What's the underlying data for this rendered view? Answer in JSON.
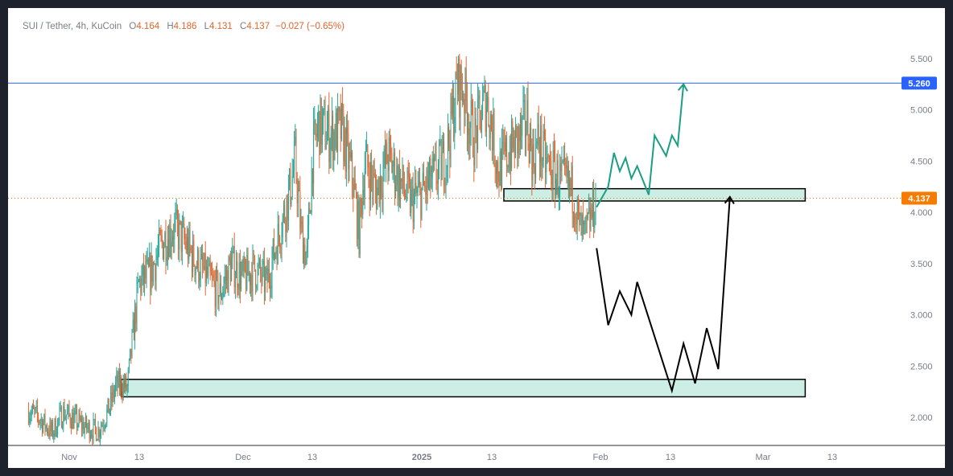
{
  "header": {
    "symbol": "SUI / Tether, 4h, KuCoin",
    "open_label": "O",
    "open_value": "4.164",
    "high_label": "H",
    "high_value": "4.186",
    "low_label": "L",
    "low_value": "4.131",
    "close_label": "C",
    "close_value": "4.137",
    "change": "−0.027 (−0.65%)"
  },
  "chart_data": {
    "type": "candlestick",
    "ylim": [
      1.75,
      5.65
    ],
    "y_ticks": [
      2.0,
      2.5,
      3.0,
      3.5,
      4.0,
      4.5,
      5.0,
      5.5
    ],
    "y_tick_labels": [
      "2.000",
      "2.500",
      "3.000",
      "3.500",
      "4.000",
      "4.500",
      "5.000",
      "5.500"
    ],
    "x_tick_labels": [
      "Nov",
      "13",
      "Dec",
      "13",
      "2025",
      "13",
      "Feb",
      "13",
      "Mar",
      "13"
    ],
    "colors": {
      "up": "#26a69a",
      "down": "#e0652e",
      "resistance": "#2962ff",
      "price": "#f57c00",
      "zone_fill": "#cdeee5",
      "bull_path": "#1a9e86",
      "bear_path": "#000000"
    },
    "resistance": {
      "value": 5.26,
      "label": "5.260"
    },
    "last_price": {
      "value": 4.137,
      "label": "4.137"
    },
    "zones": [
      {
        "name": "upper-zone",
        "from_date": "2025-01-14",
        "to_date": "2025-03-07",
        "low": 4.11,
        "high": 4.23
      },
      {
        "name": "lower-zone",
        "from_date": "2024-11-09",
        "to_date": "2025-03-07",
        "low": 2.2,
        "high": 2.37
      }
    ],
    "close_series": [
      [
        "2024-10-24",
        2.07
      ],
      [
        "2024-10-26",
        1.98
      ],
      [
        "2024-10-28",
        1.85
      ],
      [
        "2024-10-30",
        2.05
      ],
      [
        "2024-11-01",
        1.97
      ],
      [
        "2024-11-03",
        1.9
      ],
      [
        "2024-11-05",
        1.87
      ],
      [
        "2024-11-07",
        2.1
      ],
      [
        "2024-11-08",
        2.3
      ],
      [
        "2024-11-09",
        2.33
      ],
      [
        "2024-11-10",
        2.28
      ],
      [
        "2024-11-11",
        2.8
      ],
      [
        "2024-11-12",
        3.3
      ],
      [
        "2024-11-14",
        3.4
      ],
      [
        "2024-11-16",
        3.7
      ],
      [
        "2024-11-18",
        3.85
      ],
      [
        "2024-11-20",
        3.7
      ],
      [
        "2024-11-22",
        3.5
      ],
      [
        "2024-11-24",
        3.35
      ],
      [
        "2024-11-26",
        3.2
      ],
      [
        "2024-11-28",
        3.5
      ],
      [
        "2024-11-30",
        3.35
      ],
      [
        "2024-12-02",
        3.45
      ],
      [
        "2024-12-04",
        3.3
      ],
      [
        "2024-12-06",
        3.75
      ],
      [
        "2024-12-08",
        4.2
      ],
      [
        "2024-12-09",
        4.5
      ],
      [
        "2024-12-10",
        3.8
      ],
      [
        "2024-12-11",
        3.55
      ],
      [
        "2024-12-12",
        4.55
      ],
      [
        "2024-12-13",
        4.85
      ],
      [
        "2024-12-15",
        4.75
      ],
      [
        "2024-12-17",
        4.8
      ],
      [
        "2024-12-19",
        4.3
      ],
      [
        "2024-12-20",
        3.8
      ],
      [
        "2024-12-21",
        4.5
      ],
      [
        "2024-12-23",
        4.2
      ],
      [
        "2024-12-25",
        4.55
      ],
      [
        "2024-12-27",
        4.3
      ],
      [
        "2024-12-29",
        4.1
      ],
      [
        "2024-12-31",
        4.2
      ],
      [
        "2025-01-02",
        4.35
      ],
      [
        "2025-01-04",
        4.55
      ],
      [
        "2025-01-05",
        4.9
      ],
      [
        "2025-01-06",
        5.25
      ],
      [
        "2025-01-07",
        5.2
      ],
      [
        "2025-01-08",
        4.9
      ],
      [
        "2025-01-09",
        4.7
      ],
      [
        "2025-01-10",
        4.95
      ],
      [
        "2025-01-11",
        5.1
      ],
      [
        "2025-01-12",
        4.8
      ],
      [
        "2025-01-13",
        4.4
      ],
      [
        "2025-01-15",
        4.6
      ],
      [
        "2025-01-17",
        4.75
      ],
      [
        "2025-01-18",
        4.9
      ],
      [
        "2025-01-19",
        4.5
      ],
      [
        "2025-01-20",
        4.7
      ],
      [
        "2025-01-21",
        4.5
      ],
      [
        "2025-01-23",
        4.35
      ],
      [
        "2025-01-25",
        4.25
      ],
      [
        "2025-01-26",
        4.2
      ],
      [
        "2025-01-27",
        3.85
      ],
      [
        "2025-01-28",
        3.75
      ],
      [
        "2025-01-29",
        3.95
      ],
      [
        "2025-01-30",
        4.137
      ]
    ],
    "bull_path": [
      [
        "2025-01-30",
        4.05
      ],
      [
        "2025-02-01",
        4.25
      ],
      [
        "2025-02-02",
        4.58
      ],
      [
        "2025-02-03",
        4.4
      ],
      [
        "2025-02-04",
        4.53
      ],
      [
        "2025-02-05",
        4.33
      ],
      [
        "2025-02-06",
        4.45
      ],
      [
        "2025-02-08",
        4.17
      ],
      [
        "2025-02-09",
        4.75
      ],
      [
        "2025-02-11",
        4.55
      ],
      [
        "2025-02-12",
        4.75
      ],
      [
        "2025-02-13",
        4.65
      ],
      [
        "2025-02-14",
        5.25
      ]
    ],
    "bear_path": [
      [
        "2025-01-30",
        3.65
      ],
      [
        "2025-02-01",
        2.9
      ],
      [
        "2025-02-03",
        3.23
      ],
      [
        "2025-02-05",
        3.0
      ],
      [
        "2025-02-06",
        3.32
      ],
      [
        "2025-02-12",
        2.26
      ],
      [
        "2025-02-14",
        2.72
      ],
      [
        "2025-02-16",
        2.33
      ],
      [
        "2025-02-18",
        2.87
      ],
      [
        "2025-02-20",
        2.47
      ],
      [
        "2025-02-22",
        4.15
      ]
    ]
  }
}
